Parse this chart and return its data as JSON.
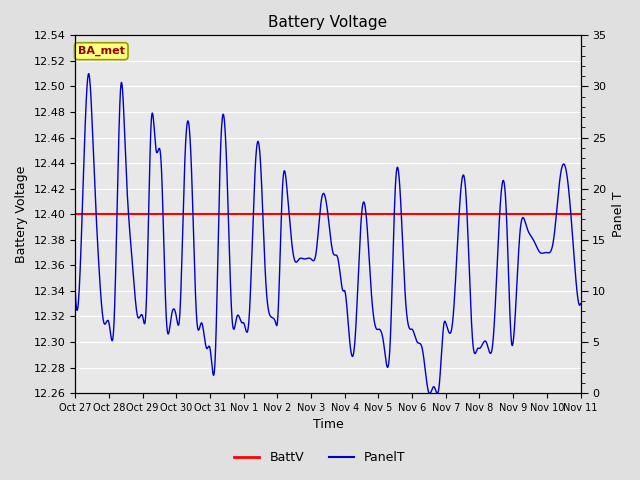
{
  "title": "Battery Voltage",
  "xlabel": "Time",
  "ylabel_left": "Battery Voltage",
  "ylabel_right": "Panel T",
  "legend_label1": "BattV",
  "legend_label2": "PanelT",
  "battv_value": 12.4,
  "ylim_left": [
    12.26,
    12.54
  ],
  "ylim_right": [
    0,
    35
  ],
  "yticks_left": [
    12.26,
    12.28,
    12.3,
    12.32,
    12.34,
    12.36,
    12.38,
    12.4,
    12.42,
    12.44,
    12.46,
    12.48,
    12.5,
    12.52,
    12.54
  ],
  "yticks_right": [
    0,
    5,
    10,
    15,
    20,
    25,
    30,
    35
  ],
  "xtick_labels": [
    "Oct 27",
    "Oct 28",
    "Oct 29",
    "Oct 30",
    "Oct 31",
    "Nov 1",
    "Nov 2",
    "Nov 3",
    "Nov 4",
    "Nov 5",
    "Nov 6",
    "Nov 7",
    "Nov 8",
    "Nov 9",
    "Nov 10",
    "Nov 11"
  ],
  "background_color": "#e0e0e0",
  "plot_bg_color": "#e8e8e8",
  "line_color_battv": "#ff0000",
  "line_color_panelt": "#0000cc",
  "grid_color": "#ffffff",
  "annotation_text": "BA_met",
  "annotation_bg": "#ffff80",
  "annotation_border": "#999900",
  "annotation_text_color": "#990000",
  "figsize": [
    6.4,
    4.8
  ],
  "dpi": 100
}
